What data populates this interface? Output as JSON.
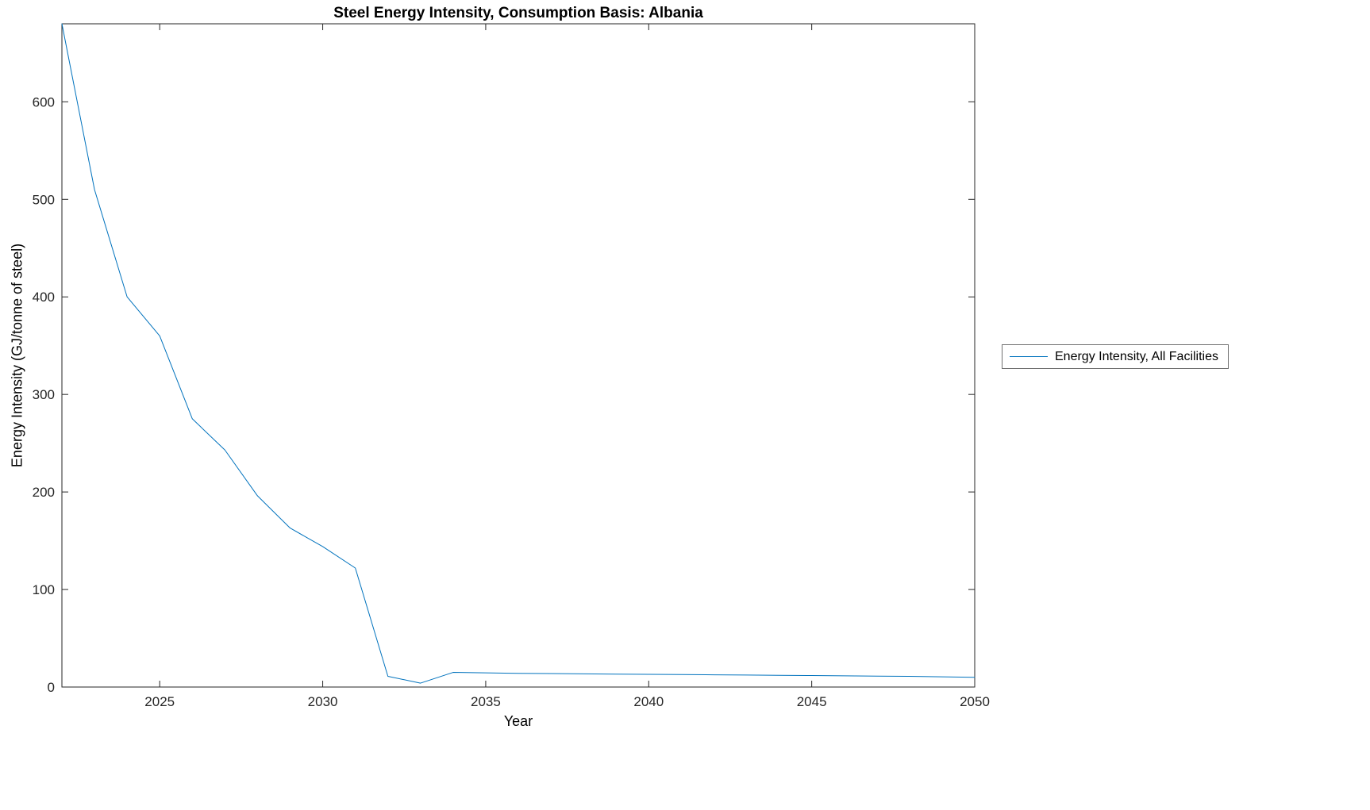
{
  "figure": {
    "background": "#ffffff"
  },
  "chart_data": {
    "type": "line",
    "title": "Steel Energy Intensity, Consumption Basis: Albania",
    "xlabel": "Year",
    "ylabel": "Energy Intensity (GJ/tonne of steel)",
    "xlim": [
      2022,
      2050
    ],
    "ylim": [
      0,
      680
    ],
    "x_ticks": [
      2025,
      2030,
      2035,
      2040,
      2045,
      2050
    ],
    "y_ticks": [
      0,
      100,
      200,
      300,
      400,
      500,
      600
    ],
    "grid": false,
    "axis_color": "#262626",
    "legend": {
      "position": "right-outside",
      "border_color": "#707070"
    },
    "x": [
      2022,
      2023,
      2024,
      2025,
      2026,
      2027,
      2028,
      2029,
      2030,
      2031,
      2032,
      2033,
      2034,
      2035,
      2036,
      2037,
      2038,
      2039,
      2040,
      2041,
      2042,
      2043,
      2044,
      2045,
      2046,
      2047,
      2048,
      2049,
      2050
    ],
    "series": [
      {
        "name": "Energy Intensity, All Facilities",
        "color": "#0072BD",
        "values": [
          680,
          510,
          400,
          360,
          275,
          243,
          196,
          163,
          144,
          122,
          11,
          4,
          15,
          14.5,
          14,
          13.8,
          13.5,
          13.2,
          13,
          12.8,
          12.5,
          12.3,
          12,
          11.8,
          11.5,
          11.2,
          11,
          10.5,
          10
        ]
      }
    ]
  }
}
